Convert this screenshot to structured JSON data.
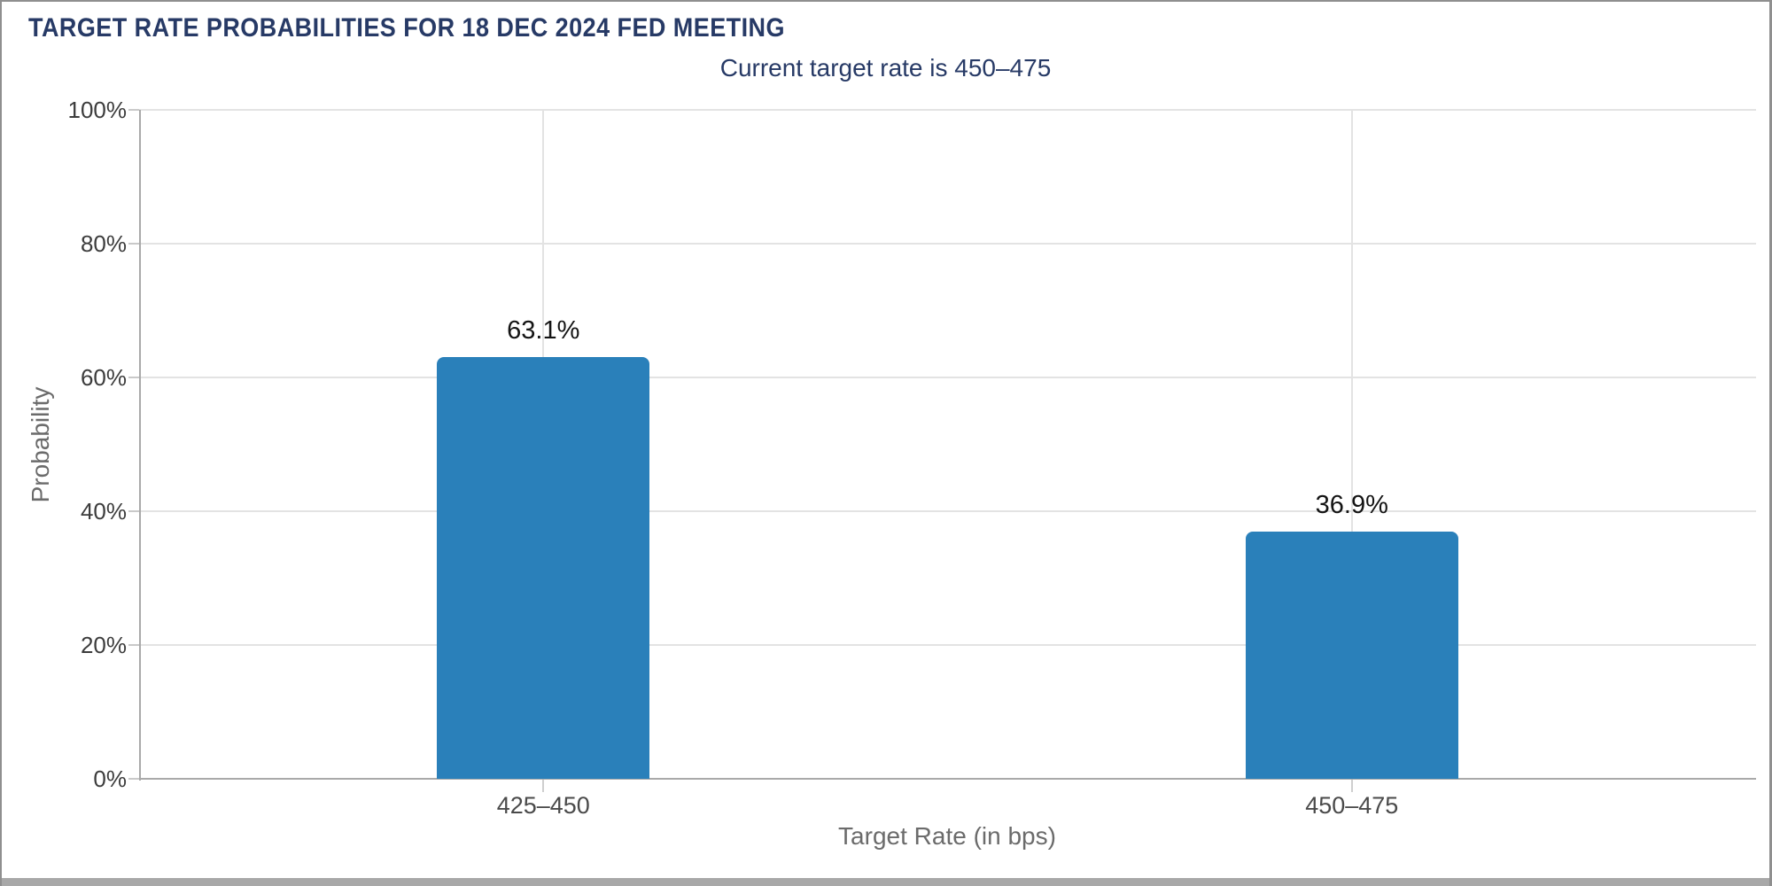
{
  "chart_data": {
    "type": "bar",
    "title": "TARGET RATE PROBABILITIES FOR 18 DEC 2024 FED MEETING",
    "subtitle": "Current target rate is 450–475",
    "categories": [
      "425–450",
      "450–475"
    ],
    "values": [
      63.1,
      36.9
    ],
    "value_labels": [
      "63.1%",
      "36.9%"
    ],
    "xlabel": "Target Rate (in bps)",
    "ylabel": "Probability",
    "ylim": [
      0,
      100
    ],
    "yticks": [
      0,
      20,
      40,
      60,
      80,
      100
    ],
    "ytick_labels": [
      "0%",
      "20%",
      "40%",
      "60%",
      "80%",
      "100%"
    ],
    "grid": true,
    "legend": false,
    "colors": {
      "bar": "#2a80ba",
      "title": "#273a66",
      "subtitle": "#273a66",
      "gridline": "#e3e3e3",
      "axis_line": "#a9a9a9",
      "tick_label": "#3c3c3c",
      "axis_title": "#6b6b6b",
      "data_label": "#141414"
    }
  }
}
